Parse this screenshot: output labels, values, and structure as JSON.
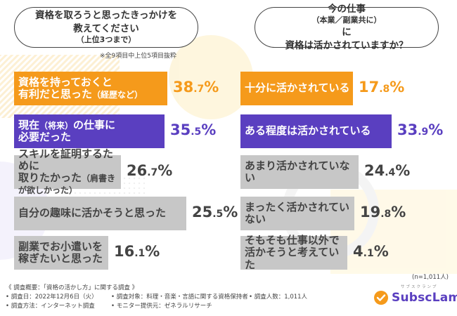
{
  "left": {
    "question": [
      "資格を取ろうと思ったきっかけを",
      "教えてください",
      "（上位3つまで）"
    ],
    "note": "※全9項目中上位5項目抜粋",
    "bars": [
      {
        "line1": "資格を持っておくと",
        "line2": "有利だと思った",
        "line2_small": "（経歴など）",
        "int": "38",
        "dec": ".7",
        "unit": "%",
        "value": 38.7,
        "color": "orange"
      },
      {
        "line1": "現在",
        "line1_small": "（将来）",
        "line1_rest": "の仕事に",
        "line2": "必要だった",
        "int": "35",
        "dec": ".5",
        "unit": "%",
        "value": 35.5,
        "color": "purple"
      },
      {
        "line1": "スキルを証明するために",
        "line2": "取りたかった",
        "line2_small": "（肩書きが欲しかった）",
        "int": "26",
        "dec": ".7",
        "unit": "%",
        "value": 26.7,
        "color": "gray"
      },
      {
        "line1": "自分の趣味に活かそうと思った",
        "line2": "",
        "int": "25",
        "dec": ".5",
        "unit": "%",
        "value": 25.5,
        "color": "gray"
      },
      {
        "line1": "副業でお小遣いを",
        "line2": "稼ぎたいと思った",
        "int": "16",
        "dec": ".1",
        "unit": "%",
        "value": 16.1,
        "color": "gray"
      }
    ]
  },
  "right": {
    "question": [
      "今の仕事",
      "（本業／副業共に）",
      "に",
      "資格は活かされていますか？"
    ],
    "bars": [
      {
        "line1": "十分に活かされている",
        "line2": "",
        "int": "17",
        "dec": ".8",
        "unit": "%",
        "value": 17.8,
        "color": "orange"
      },
      {
        "line1": "ある程度は活かされている",
        "line2": "",
        "int": "33",
        "dec": ".9",
        "unit": "%",
        "value": 33.9,
        "color": "purple"
      },
      {
        "line1": "あまり活かされていない",
        "line2": "",
        "int": "24",
        "dec": ".4",
        "unit": "%",
        "value": 24.4,
        "color": "gray"
      },
      {
        "line1": "まったく活かされていない",
        "line2": "",
        "int": "19",
        "dec": ".8",
        "unit": "%",
        "value": 19.8,
        "color": "gray"
      },
      {
        "line1": "そもそも仕事以外で",
        "line2": "活かそうと考えていた",
        "int": "4",
        "dec": ".1",
        "unit": "%",
        "value": 4.1,
        "color": "gray"
      }
    ],
    "n_note": "(n=1,011人)"
  },
  "footer": {
    "title": "《 調査概要：「資格の活かし方」に関する調査 》",
    "date": "• 調査日：2022年12月6日（火）",
    "target": "• 調査対象：料理・音楽・言語に関する資格保持者",
    "count": "• 調査人数：1,011人",
    "method": "• 調査方法：インターネット調査",
    "provider": "• モニター提供元：ゼネラルリサーチ"
  },
  "logo": {
    "text": "SubscLamp",
    "ruby": "サブスクランプ"
  },
  "colors": {
    "orange": "#f59a1b",
    "purple": "#5a3fc0",
    "gray": "#c7c7c7"
  },
  "chart_data": [
    {
      "type": "bar",
      "title": "資格を取ろうと思ったきっかけを教えてください（上位3つまで）",
      "note": "※全9項目中上位5項目抜粋",
      "categories": [
        "資格を持っておくと有利だと思った（経歴など）",
        "現在（将来）の仕事に必要だった",
        "スキルを証明するために取りたかった（肩書きが欲しかった）",
        "自分の趣味に活かそうと思った",
        "副業でお小遣いを稼ぎたいと思った"
      ],
      "values": [
        38.7,
        35.5,
        26.7,
        25.5,
        16.1
      ],
      "unit": "%"
    },
    {
      "type": "bar",
      "title": "今の仕事（本業／副業共に）に資格は活かされていますか？",
      "categories": [
        "十分に活かされている",
        "ある程度は活かされている",
        "あまり活かされていない",
        "まったく活かされていない",
        "そもそも仕事以外で活かそうと考えていた"
      ],
      "values": [
        17.8,
        33.9,
        24.4,
        19.8,
        4.1
      ],
      "unit": "%",
      "n": "n=1,011人"
    }
  ]
}
